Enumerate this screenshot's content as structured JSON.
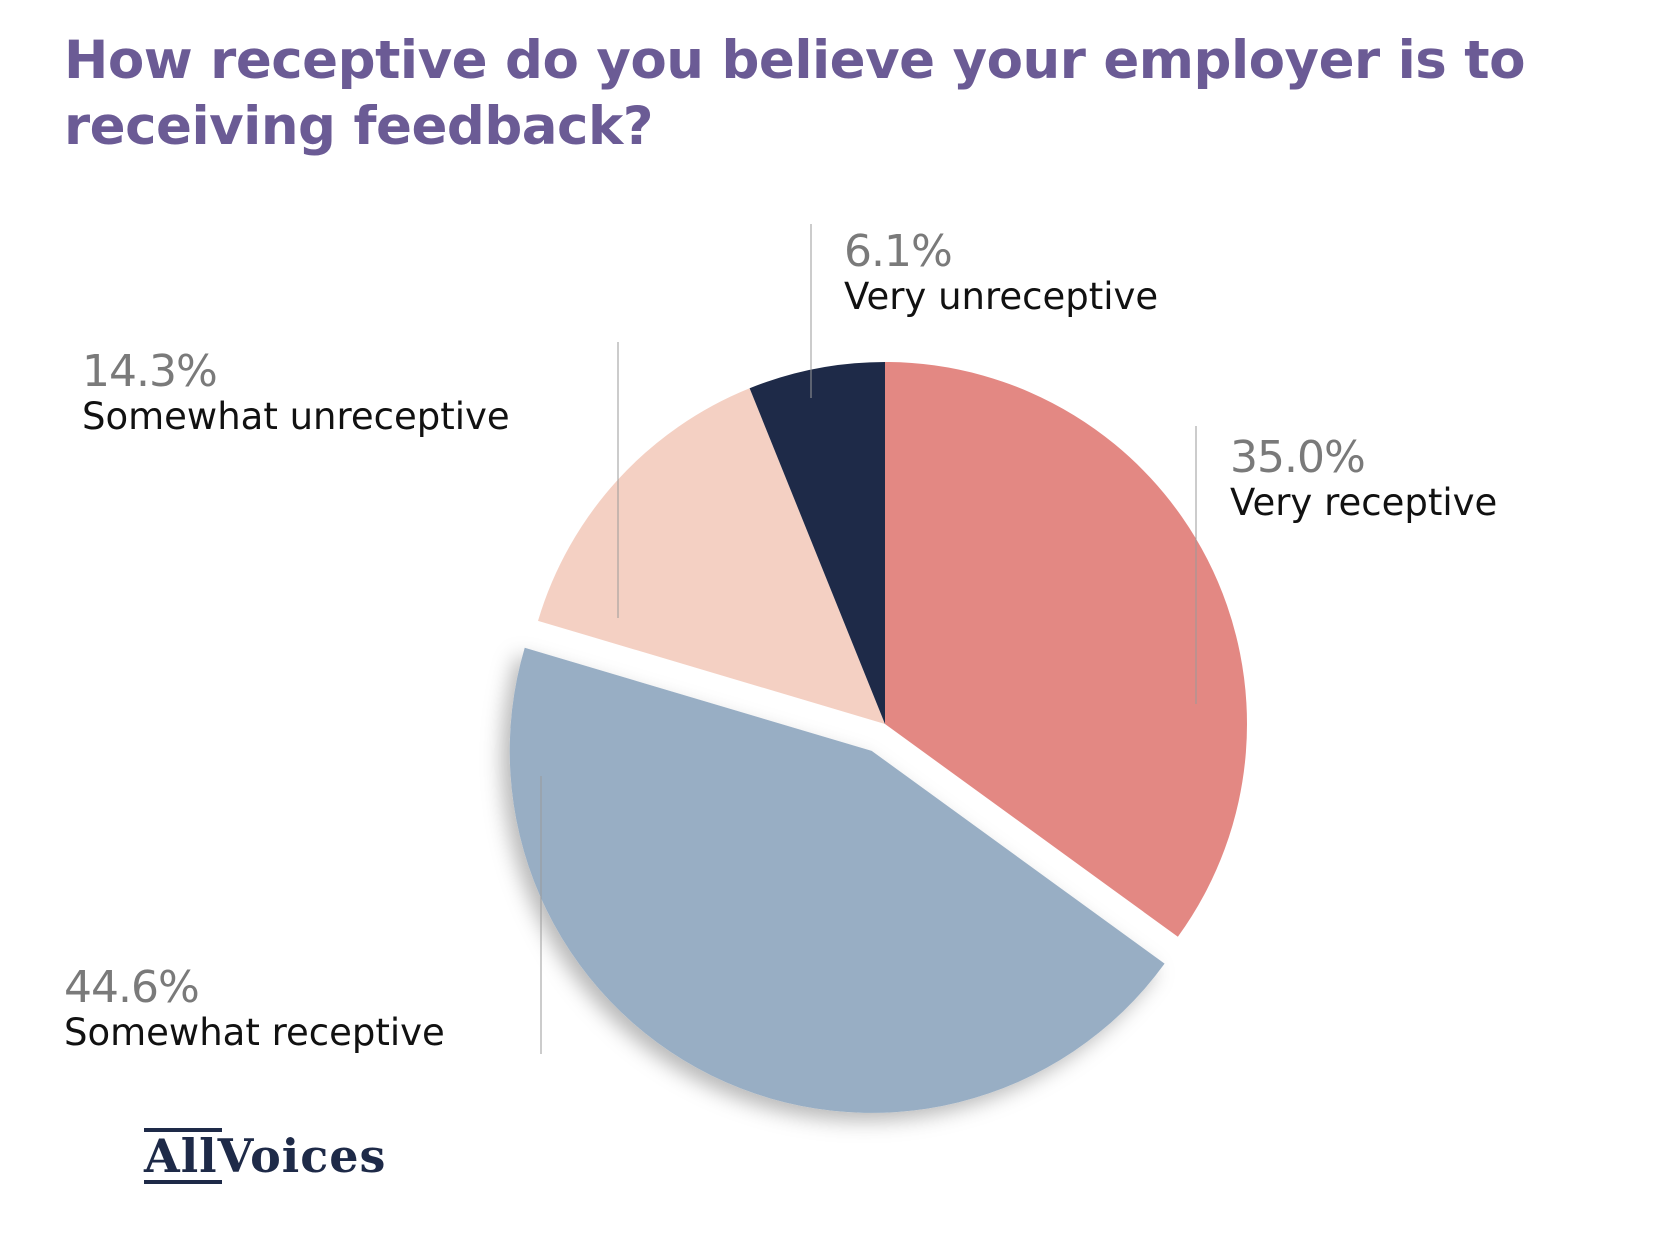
{
  "title": "How receptive do you believe your employer is to receiving feedback?",
  "logo": {
    "part1": "All",
    "part2": "Voices"
  },
  "colors": {
    "title": "#6b5b95",
    "very_receptive": "#e38883",
    "somewhat_receptive": "#98aec4",
    "somewhat_unreceptive": "#f4d0c3",
    "very_unreceptive": "#1e2a48"
  },
  "chart_data": {
    "type": "pie",
    "title": "How receptive do you believe your employer is to receiving feedback?",
    "start_angle": "12 o'clock, clockwise",
    "exploded": "Somewhat receptive",
    "slices": [
      {
        "label": "Very receptive",
        "value": 35.0,
        "display": "35.0%",
        "color": "#e38883"
      },
      {
        "label": "Somewhat receptive",
        "value": 44.6,
        "display": "44.6%",
        "color": "#98aec4"
      },
      {
        "label": "Somewhat unreceptive",
        "value": 14.3,
        "display": "14.3%",
        "color": "#f4d0c3"
      },
      {
        "label": "Very unreceptive",
        "value": 6.1,
        "display": "6.1%",
        "color": "#1e2a48"
      }
    ]
  }
}
